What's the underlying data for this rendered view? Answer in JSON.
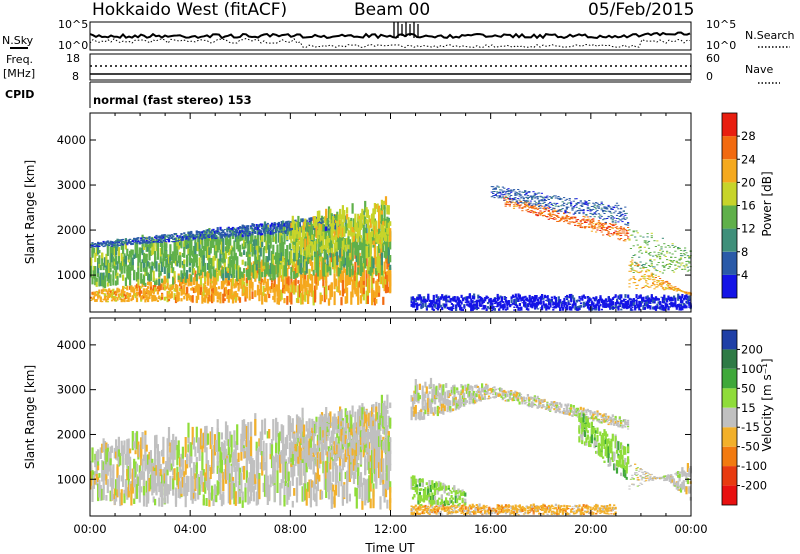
{
  "header": {
    "title": "Hokkaido West (fitACF)",
    "beam": "Beam 00",
    "date": "05/Feb/2015"
  },
  "top_panels": {
    "noise_left_label": "N.Sky",
    "noise_right_label": "N.Search",
    "noise_left_ticks": [
      "10^5",
      "10^0"
    ],
    "noise_right_ticks": [
      "10^5",
      "10^0"
    ],
    "freq_label_1": "Freq.",
    "freq_label_2": "[MHz]",
    "freq_ticks": [
      "18",
      "8"
    ],
    "nave_label": "Nave",
    "nave_ticks": [
      "60",
      "0"
    ],
    "cpid_label": "CPID",
    "cpid_text": "normal (fast stereo) 153"
  },
  "chart_data": [
    {
      "type": "heatmap",
      "name": "power",
      "ylabel": "Slant Range [km]",
      "ylim": [
        180,
        4600
      ],
      "yticks": [
        "1000",
        "2000",
        "3000",
        "4000"
      ],
      "xlim": [
        0,
        24
      ],
      "colorbar_label": "Power [dB]",
      "colorbar_ticks": [
        "4",
        "8",
        "12",
        "16",
        "20",
        "24",
        "28"
      ],
      "colors": [
        "#1414e6",
        "#2a5aa8",
        "#3f8f7a",
        "#5fb04a",
        "#c7d42a",
        "#f5a91e",
        "#f26a10",
        "#e81e10"
      ],
      "bands": [
        {
          "t0": 0.0,
          "t1": 12.0,
          "r0": [
            400,
            300
          ],
          "r1": [
            600,
            1600
          ],
          "c": 5
        },
        {
          "t0": 0.0,
          "t1": 12.0,
          "r0": [
            700,
            1000
          ],
          "r1": [
            1500,
            2200
          ],
          "c": 3
        },
        {
          "t0": 0.0,
          "t1": 10.0,
          "r0": [
            1600,
            2000
          ],
          "r1": [
            1700,
            2300
          ],
          "c": 1
        },
        {
          "t0": 8.0,
          "t1": 12.0,
          "r0": [
            1300,
            1700
          ],
          "r1": [
            2100,
            2600
          ],
          "c": 4
        },
        {
          "t0": 16.5,
          "t1": 21.5,
          "r0": [
            2800,
            2100
          ],
          "r1": [
            2600,
            1800
          ],
          "c": 6
        },
        {
          "t0": 16.0,
          "t1": 21.5,
          "r0": [
            3050,
            2600
          ],
          "r1": [
            2800,
            2200
          ],
          "c": 1
        },
        {
          "t0": 21.5,
          "t1": 24.0,
          "r0": [
            1500,
            500
          ],
          "r1": [
            900,
            600
          ],
          "c": 5
        },
        {
          "t0": 21.5,
          "t1": 24.0,
          "r0": [
            2300,
            1600
          ],
          "r1": [
            1300,
            1200
          ],
          "c": 3
        },
        {
          "t0": 12.8,
          "t1": 24.0,
          "r0": [
            200,
            200
          ],
          "r1": [
            500,
            500
          ],
          "c": 0
        }
      ]
    },
    {
      "type": "heatmap",
      "name": "velocity",
      "ylabel": "Slant Range [km]",
      "xlabel": "Time UT",
      "ylim": [
        180,
        4600
      ],
      "yticks": [
        "1000",
        "2000",
        "3000",
        "4000"
      ],
      "xlim": [
        0,
        24
      ],
      "xticks": [
        "00:00",
        "04:00",
        "08:00",
        "12:00",
        "16:00",
        "20:00",
        "00:00"
      ],
      "colorbar_label": "Velocity [m s⁻¹]",
      "colorbar_ticks": [
        "200",
        "100",
        "50",
        "15",
        "-15",
        "-50",
        "-100",
        "-200"
      ],
      "colors": [
        "#1f3fa6",
        "#2e7a45",
        "#3fa83a",
        "#8fdc3a",
        "#c0c0c0",
        "#f2b02a",
        "#f27a10",
        "#e83a10",
        "#e81010"
      ],
      "bands": [
        {
          "t0": 0.0,
          "t1": 12.0,
          "r0": [
            400,
            300
          ],
          "r1": [
            1600,
            2300
          ],
          "c": 4
        },
        {
          "t0": 8.0,
          "t1": 12.0,
          "r0": [
            1200,
            1600
          ],
          "r1": [
            2100,
            2600
          ],
          "c": 4
        },
        {
          "t0": 12.8,
          "t1": 16.0,
          "r0": [
            2200,
            2800
          ],
          "r1": [
            3050,
            3050
          ],
          "c": 4
        },
        {
          "t0": 16.0,
          "t1": 21.5,
          "r0": [
            2800,
            2100
          ],
          "r1": [
            3050,
            2300
          ],
          "c": 4
        },
        {
          "t0": 19.5,
          "t1": 21.5,
          "r0": [
            1800,
            900
          ],
          "r1": [
            2400,
            1600
          ],
          "c": 3
        },
        {
          "t0": 21.5,
          "t1": 24.0,
          "r0": [
            1500,
            500
          ],
          "r1": [
            900,
            1200
          ],
          "c": 4
        },
        {
          "t0": 12.8,
          "t1": 21.0,
          "r0": [
            200,
            200
          ],
          "r1": [
            400,
            400
          ],
          "c": 5
        },
        {
          "t0": 12.8,
          "t1": 15.0,
          "r0": [
            400,
            400
          ],
          "r1": [
            1000,
            700
          ],
          "c": 3
        }
      ]
    }
  ]
}
